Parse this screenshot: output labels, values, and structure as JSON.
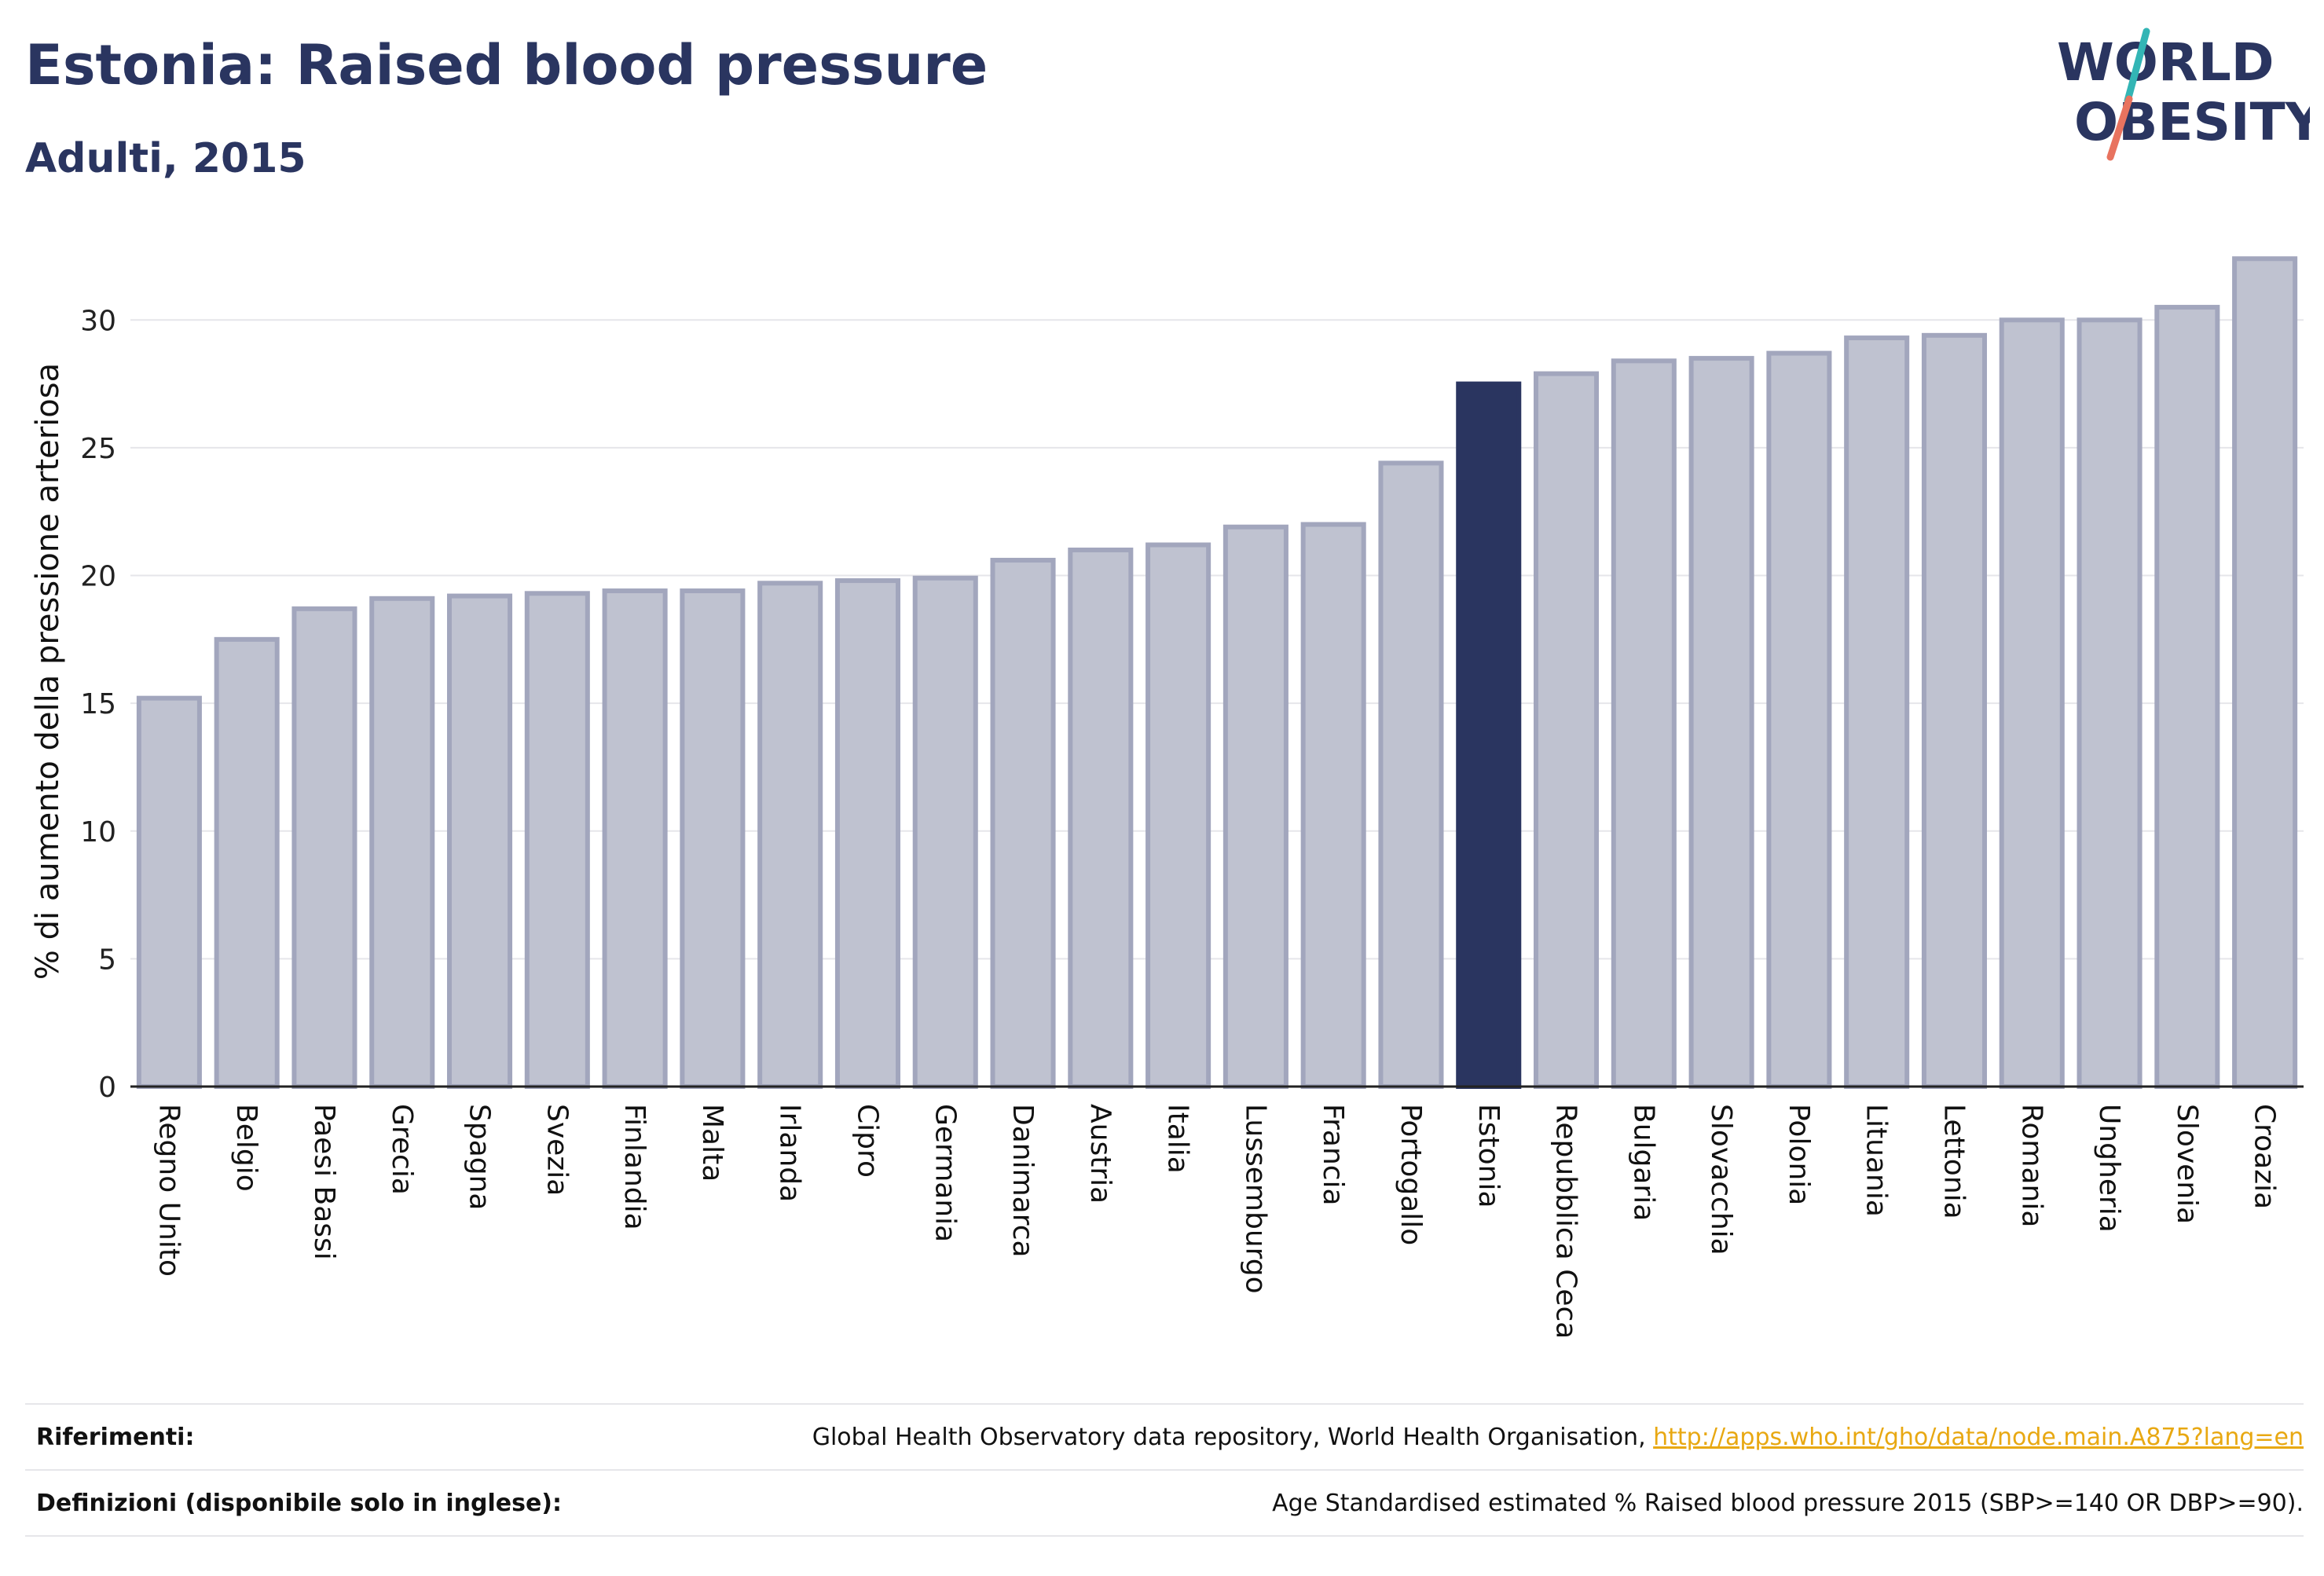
{
  "header": {
    "title": "Estonia: Raised blood pressure",
    "subtitle": "Adulti, 2015",
    "logo_line1": "WORLD",
    "logo_line2": "OBESITY"
  },
  "colors": {
    "bar": "#bfc2d0",
    "bar_stroke": "#a2a6bd",
    "highlight": "#2a3560",
    "grid": "#e6e6ea",
    "logo_teal": "#33b5b5",
    "logo_coral": "#e8735f"
  },
  "chart_data": {
    "type": "bar",
    "title": "Estonia: Raised blood pressure",
    "subtitle": "Adulti, 2015",
    "xlabel": "",
    "ylabel": "% di aumento della pressione arteriosa",
    "ylim": [
      0,
      32.5
    ],
    "yticks": [
      0,
      5,
      10,
      15,
      20,
      25,
      30
    ],
    "grid": true,
    "legend": "none",
    "highlight": "Estonia",
    "categories": [
      "Regno Unito",
      "Belgio",
      "Paesi Bassi",
      "Grecia",
      "Spagna",
      "Svezia",
      "Finlandia",
      "Malta",
      "Irlanda",
      "Cipro",
      "Germania",
      "Danimarca",
      "Austria",
      "Italia",
      "Lussemburgo",
      "Francia",
      "Portogallo",
      "Estonia",
      "Repubblica Ceca",
      "Bulgaria",
      "Slovacchia",
      "Polonia",
      "Lituania",
      "Lettonia",
      "Romania",
      "Ungheria",
      "Slovenia",
      "Croazia"
    ],
    "values": [
      15.2,
      17.5,
      18.7,
      19.1,
      19.2,
      19.3,
      19.4,
      19.4,
      19.7,
      19.8,
      19.9,
      20.6,
      21.0,
      21.2,
      21.9,
      22.0,
      24.4,
      27.5,
      27.9,
      28.4,
      28.5,
      28.7,
      29.3,
      29.4,
      30.0,
      30.0,
      30.5,
      32.4
    ]
  },
  "footer": {
    "refs_label": "Riferimenti:",
    "refs_text": "Global Health Observatory data repository, World Health Organisation, ",
    "refs_link": "http://apps.who.int/gho/data/node.main.A875?lang=en",
    "defs_label": "Definizioni (disponibile solo in inglese):",
    "defs_text": "Age Standardised estimated % Raised blood pressure 2015 (SBP>=140 OR DBP>=90)."
  }
}
